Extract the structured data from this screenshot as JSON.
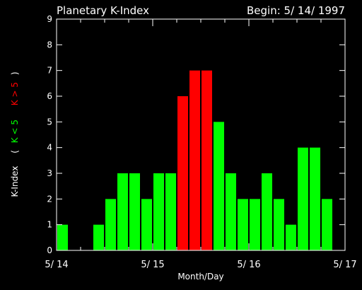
{
  "header": {
    "title": "Planetary K-Index",
    "begin": "Begin: 5/ 14/ 1997"
  },
  "colors": {
    "background": "#000000",
    "foreground": "#ffffff",
    "quiet": "#00ff00",
    "storm": "#ff0000"
  },
  "ylabel_parts": {
    "prefix": "K-Index",
    "open_paren": "(",
    "low": "K < 5",
    "high": "K > 5",
    "close_paren": ")"
  },
  "chart_data": {
    "type": "bar",
    "title": "Planetary K-Index",
    "subtitle": "Begin: 5/ 14/ 1997",
    "xlabel": "Month/Day",
    "ylabel": "K-Index",
    "x_ticks": [
      "5/ 14",
      "5/ 15",
      "5/ 16",
      "5/ 17"
    ],
    "ylim": [
      0,
      9
    ],
    "y_ticks": [
      0,
      1,
      2,
      3,
      4,
      5,
      6,
      7,
      8,
      9
    ],
    "bins_per_day": 8,
    "values": [
      1,
      0,
      0,
      1,
      2,
      3,
      3,
      2,
      3,
      3,
      6,
      7,
      7,
      5,
      3,
      2,
      2,
      3,
      2,
      1,
      4,
      4,
      2,
      0
    ],
    "storm_threshold": 5,
    "legend": [
      "K < 5",
      "K > 5"
    ],
    "grid": false
  }
}
